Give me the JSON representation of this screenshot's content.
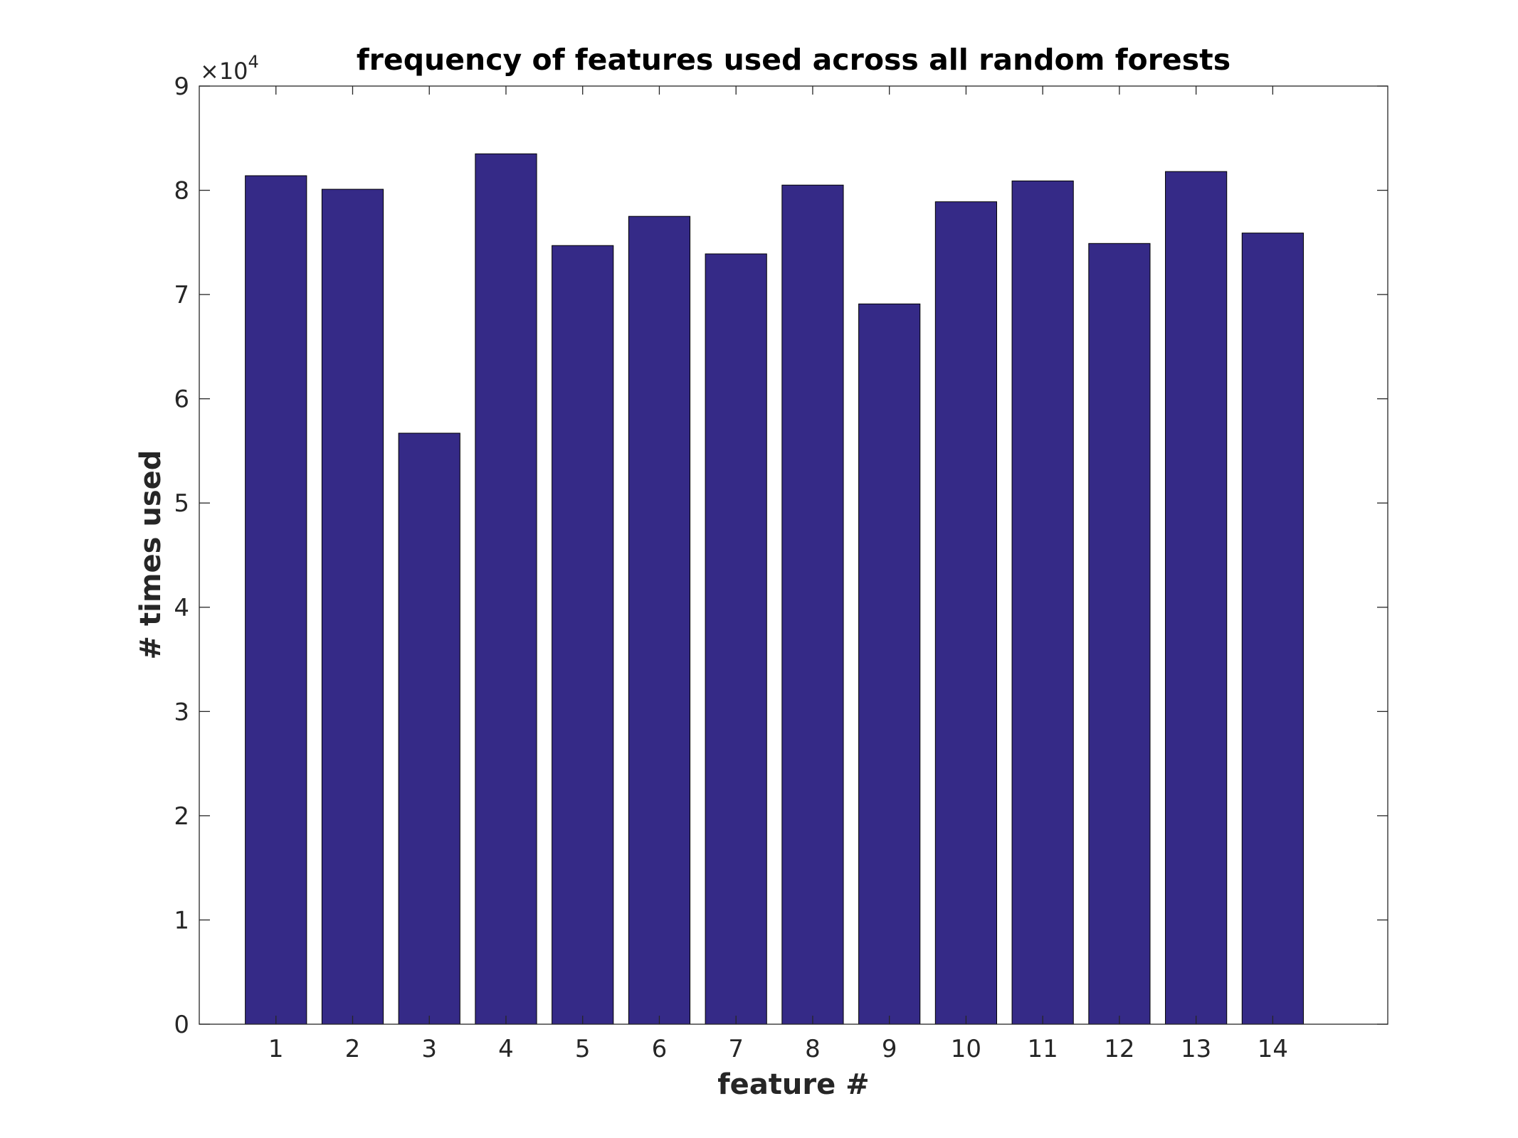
{
  "chart_data": {
    "type": "bar",
    "title": "frequency of features used across all random forests",
    "xlabel": "feature #",
    "ylabel": "# times used",
    "exponent_label": {
      "base": "×10",
      "power": "4"
    },
    "categories": [
      "1",
      "2",
      "3",
      "4",
      "5",
      "6",
      "7",
      "8",
      "9",
      "10",
      "11",
      "12",
      "13",
      "14"
    ],
    "values": [
      81400,
      80100,
      56700,
      83500,
      74700,
      77500,
      73900,
      80500,
      69100,
      78900,
      80900,
      74900,
      81800,
      75900
    ],
    "ylim": [
      0,
      90000
    ],
    "y_ticks": [
      0,
      10000,
      20000,
      30000,
      40000,
      50000,
      60000,
      70000,
      80000,
      90000
    ],
    "y_tick_labels": [
      "0",
      "1",
      "2",
      "3",
      "4",
      "5",
      "6",
      "7",
      "8",
      "9"
    ],
    "grid": false,
    "bar_color": "#352A87",
    "bar_edge_color": "#000000"
  }
}
